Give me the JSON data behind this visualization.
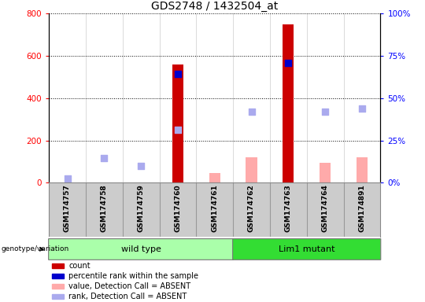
{
  "title": "GDS2748 / 1432504_at",
  "samples": [
    "GSM174757",
    "GSM174758",
    "GSM174759",
    "GSM174760",
    "GSM174761",
    "GSM174762",
    "GSM174763",
    "GSM174764",
    "GSM174891"
  ],
  "count": [
    null,
    null,
    null,
    560,
    null,
    null,
    750,
    null,
    null
  ],
  "percentile_rank": [
    null,
    null,
    null,
    515,
    null,
    null,
    565,
    null,
    null
  ],
  "value_absent": [
    null,
    null,
    null,
    null,
    45,
    120,
    null,
    95,
    120
  ],
  "rank_absent": [
    20,
    115,
    80,
    250,
    null,
    335,
    null,
    335,
    350
  ],
  "ylim_left": [
    0,
    800
  ],
  "yticks_left": [
    0,
    200,
    400,
    600,
    800
  ],
  "yticks_right_labels": [
    "0%",
    "25%",
    "50%",
    "75%",
    "100%"
  ],
  "yticks_right_vals": [
    0,
    200,
    400,
    600,
    800
  ],
  "color_count": "#cc0000",
  "color_percentile": "#0000cc",
  "color_value_absent": "#ffaaaa",
  "color_rank_absent": "#aaaaee",
  "color_wildtype_light": "#aaffaa",
  "color_wildtype_dark": "#55ee55",
  "color_lim1_dark": "#33dd33",
  "bar_width": 0.3,
  "legend_items": [
    {
      "label": "count",
      "color": "#cc0000"
    },
    {
      "label": "percentile rank within the sample",
      "color": "#0000cc"
    },
    {
      "label": "value, Detection Call = ABSENT",
      "color": "#ffaaaa"
    },
    {
      "label": "rank, Detection Call = ABSENT",
      "color": "#aaaaee"
    }
  ],
  "wt_samples": [
    0,
    1,
    2,
    3,
    4
  ],
  "lm_samples": [
    5,
    6,
    7,
    8
  ]
}
